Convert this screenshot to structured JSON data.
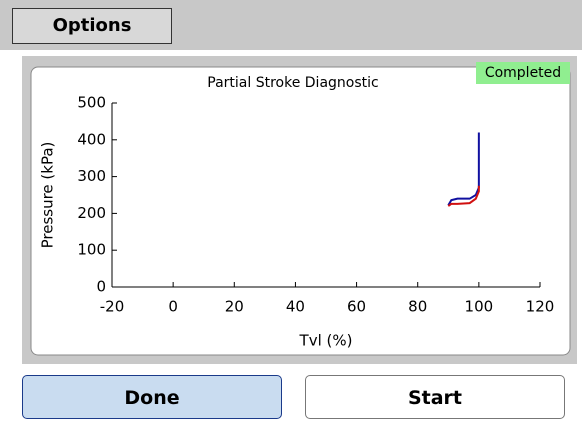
{
  "toolbar": {
    "tab": "Options"
  },
  "status": "Completed",
  "buttons": [
    "Done",
    "Start"
  ],
  "chart_data": {
    "type": "line",
    "title": "Partial Stroke Diagnostic",
    "x_label": "Tvl (%)",
    "y_label": "Pressure (kPa)",
    "xlim": [
      -20,
      120
    ],
    "xticks": [
      -20,
      0,
      20,
      40,
      60,
      80,
      100,
      120
    ],
    "ylim": [
      0,
      500
    ],
    "yticks": [
      0,
      100,
      200,
      300,
      400,
      500
    ],
    "grid": false,
    "series": [
      {
        "color": "#1010a0",
        "x": [
          90,
          91,
          93,
          97,
          99,
          100,
          100
        ],
        "values": [
          222,
          236,
          240,
          240,
          250,
          270,
          420
        ]
      },
      {
        "color": "#d01010",
        "x": [
          90,
          91,
          93,
          97,
          99,
          100,
          100
        ],
        "values": [
          220,
          226,
          226,
          228,
          240,
          260,
          275
        ]
      }
    ]
  }
}
